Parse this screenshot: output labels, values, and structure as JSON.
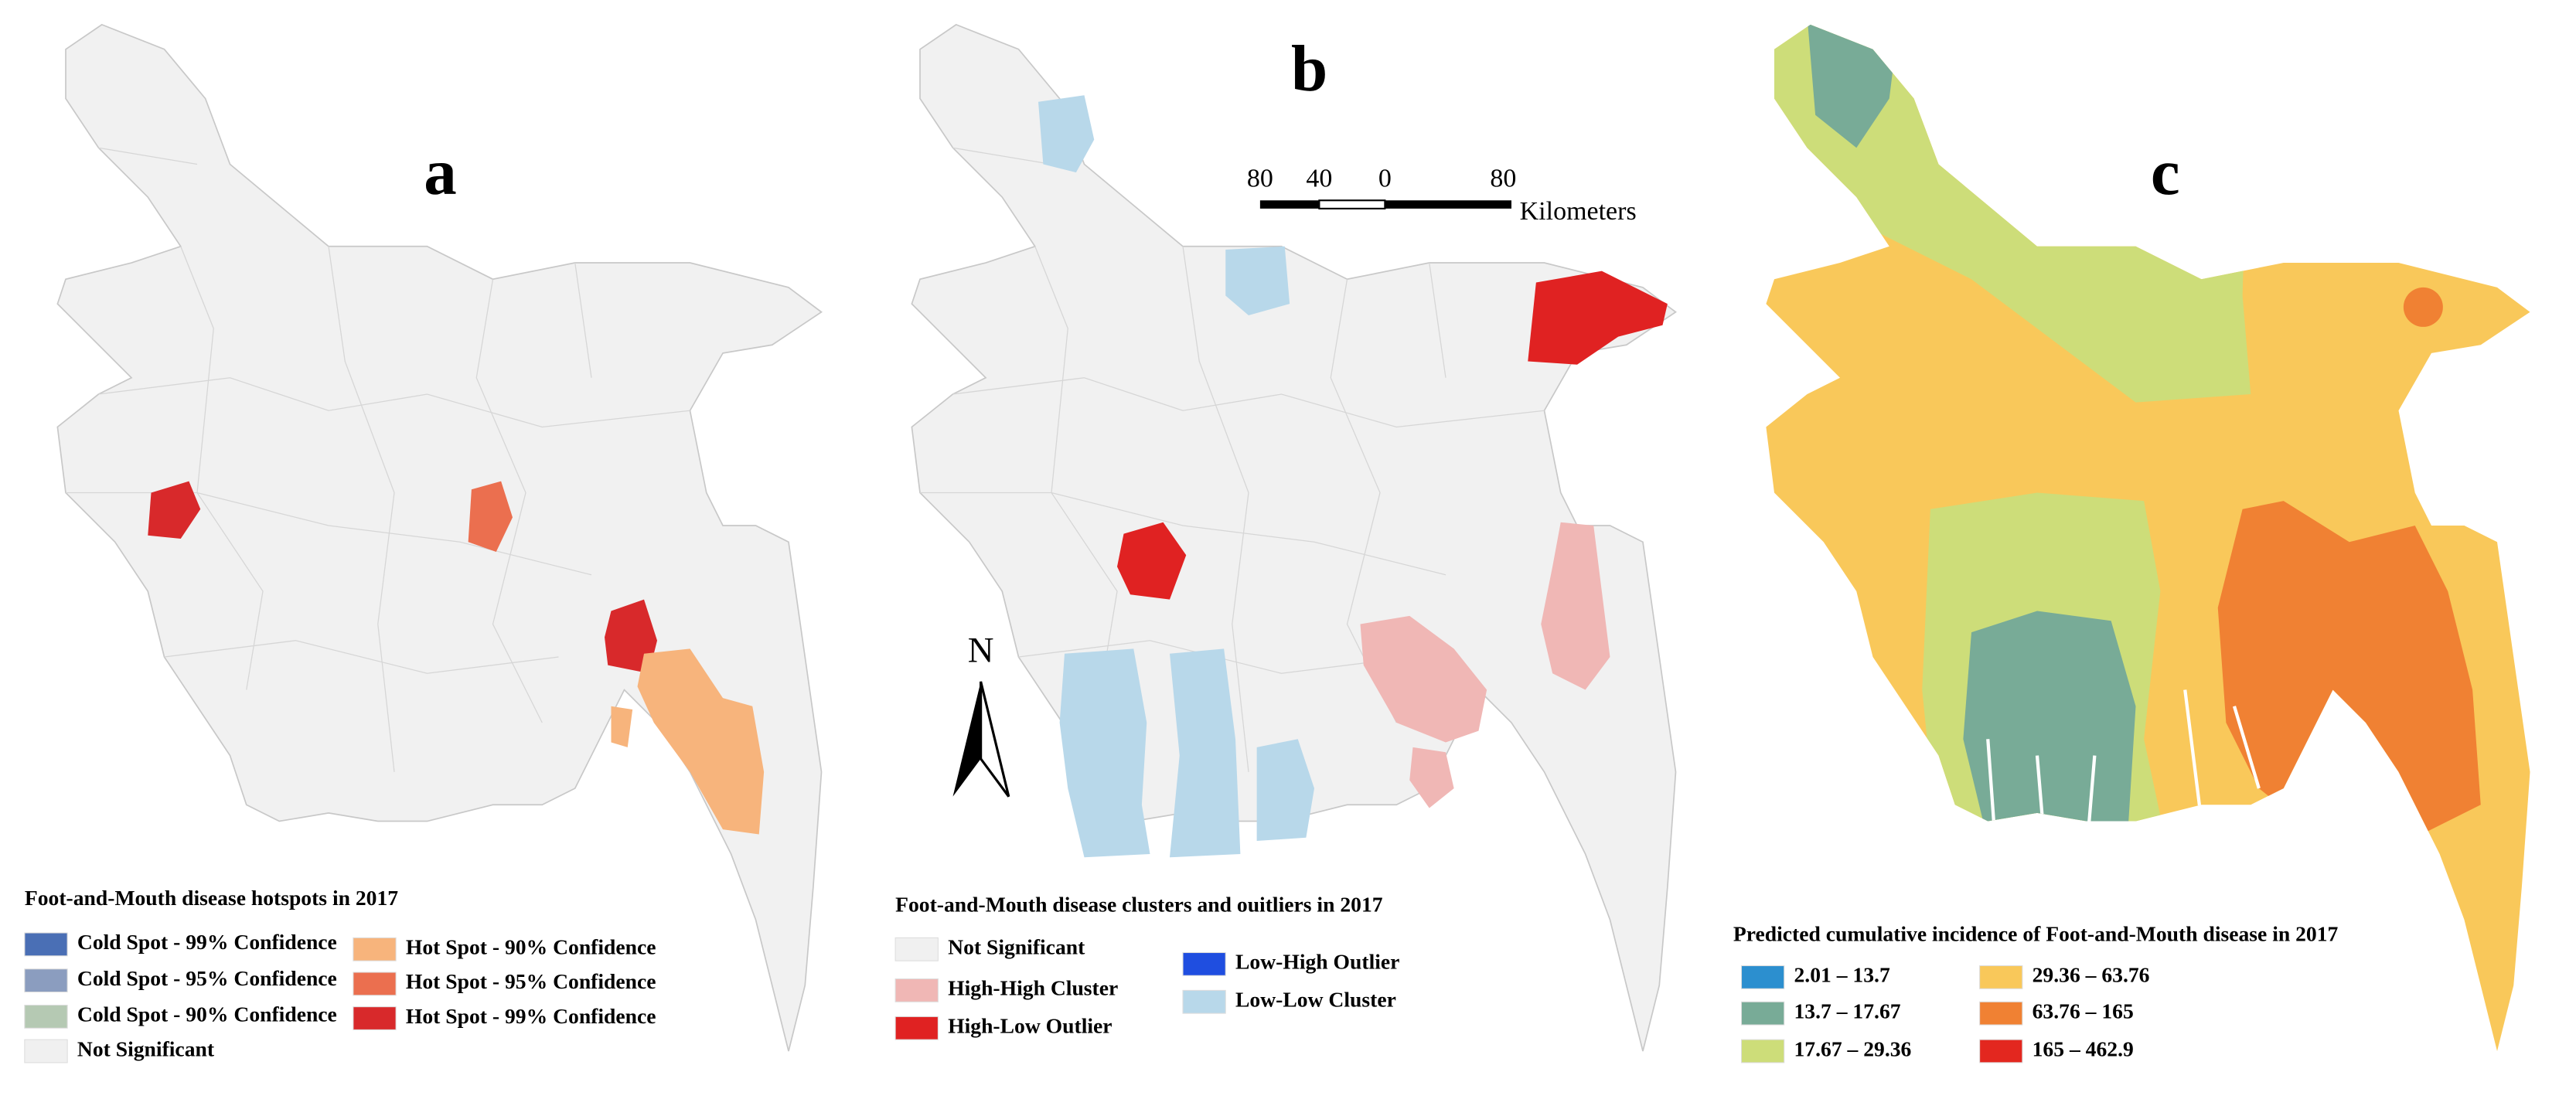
{
  "panels": [
    {
      "label": "a",
      "legend": {
        "title": "Foot-and-Mouth disease hotspots in 2017",
        "items": [
          {
            "label": "Cold Spot - 99% Confidence",
            "color": "#4a6fb5"
          },
          {
            "label": "Cold Spot - 95% Confidence",
            "color": "#8b9dbf"
          },
          {
            "label": "Cold Spot - 90% Confidence",
            "color": "#b5c9b3"
          },
          {
            "label": "Not Significant",
            "color": "#f0f0f0"
          },
          {
            "label": "Hot Spot - 90% Confidence",
            "color": "#f7b47c"
          },
          {
            "label": "Hot Spot - 95% Confidence",
            "color": "#eb6f4f"
          },
          {
            "label": "Hot Spot - 99% Confidence",
            "color": "#d8292b"
          }
        ]
      }
    },
    {
      "label": "b",
      "legend": {
        "title": "Foot-and-Mouth disease clusters and ouitliers in 2017",
        "items": [
          {
            "label": "Not Significant",
            "color": "#f0f0f0"
          },
          {
            "label": "High-High Cluster",
            "color": "#f0b7b5"
          },
          {
            "label": "High-Low Outlier",
            "color": "#e02222"
          },
          {
            "label": "Low-High Outlier",
            "color": "#1f4ee0"
          },
          {
            "label": "Low-Low Cluster",
            "color": "#b8d8ea"
          }
        ]
      }
    },
    {
      "label": "c",
      "legend": {
        "title": "Predicted cumulative incidence of Foot-and-Mouth disease in 2017",
        "items": [
          {
            "label": "2.01 – 13.7",
            "color": "#2c8fcf"
          },
          {
            "label": "13.7 – 17.67",
            "color": "#78ab97"
          },
          {
            "label": "17.67 – 29.36",
            "color": "#cddd79"
          },
          {
            "label": "29.36 – 63.76",
            "color": "#f9c85a"
          },
          {
            "label": "63.76 – 165",
            "color": "#f08133"
          },
          {
            "label": "165 – 462.9",
            "color": "#e3271f"
          }
        ]
      }
    }
  ],
  "scale_bar": {
    "ticks": [
      "80",
      "40",
      "0",
      "80"
    ],
    "unit": "Kilometers"
  },
  "north_arrow": "N"
}
